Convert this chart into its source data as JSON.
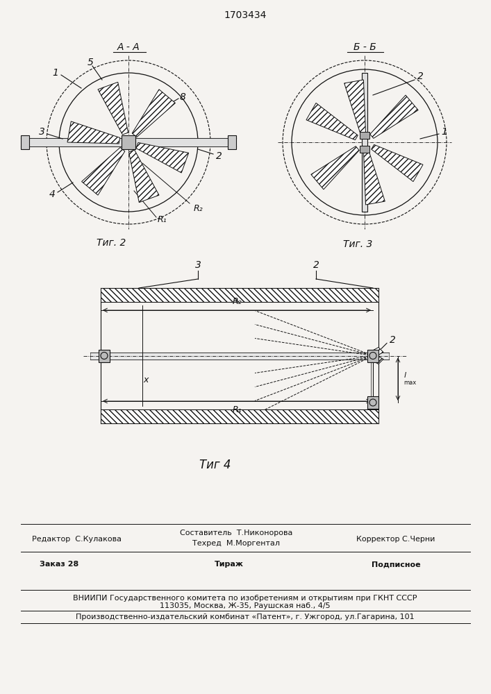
{
  "patent_number": "1703434",
  "background_color": "#f5f3f0",
  "fig2_label": "Τиг. 2",
  "fig3_label": "Τиг. 3",
  "fig4_label": "Τиг 4",
  "footer_editor": "Редактор  С.Кулакова",
  "footer_comp": "Составитель  Т.Никонорова",
  "footer_tech": "Техред  М.Моргентал",
  "footer_corr": "Корректор С.Черни",
  "footer_order": "Заказ 28",
  "footer_circ": "Тираж",
  "footer_sub": "Подписное",
  "footer_vni": "ВНИИПИ Государственного комитета по изобретениям и открытиям при ГКНТ СССР",
  "footer_addr": "113035, Москва, Ж-35, Раушская наб., 4/5",
  "footer_pub": "Производственно-издательский комбинат «Патент», г. Ужгород, ул.Гагарина, 101"
}
